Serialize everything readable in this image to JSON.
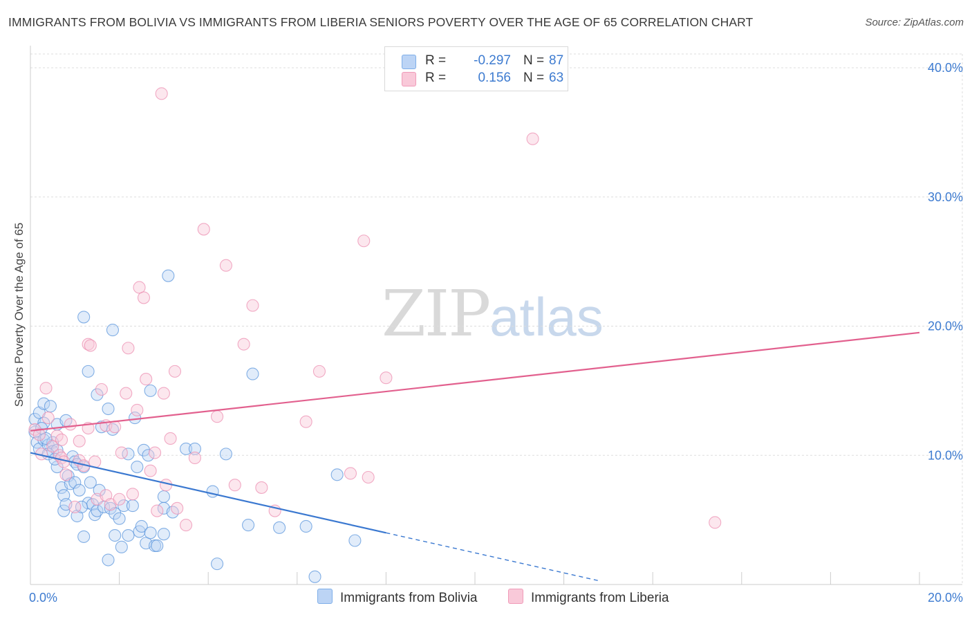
{
  "title": "IMMIGRANTS FROM BOLIVIA VS IMMIGRANTS FROM LIBERIA SENIORS POVERTY OVER THE AGE OF 65 CORRELATION CHART",
  "source": "Source: ZipAtlas.com",
  "watermark": {
    "zip": "ZIP",
    "atlas": "atlas"
  },
  "legend": [
    {
      "r_label": "R =",
      "r_value": "-0.297",
      "n_label": "N =",
      "n_value": "87",
      "color": "#7eaee8",
      "fill": "#bcd4f5"
    },
    {
      "r_label": "R =",
      "r_value": "0.156",
      "n_label": "N =",
      "n_value": "63",
      "color": "#f09ab8",
      "fill": "#f9c9d9"
    }
  ],
  "colors": {
    "bolivia": "#5b96dc",
    "liberia": "#ec8fb1",
    "bolivia_line": "#3a78d0",
    "liberia_line": "#e2608e",
    "axis_text": "#3d7bd0",
    "grid": "#dddddd"
  },
  "chart_data": {
    "type": "scatter",
    "title": "IMMIGRANTS FROM BOLIVIA VS IMMIGRANTS FROM LIBERIA SENIORS POVERTY OVER THE AGE OF 65 CORRELATION CHART",
    "xlabel": "",
    "ylabel": "Seniors Poverty Over the Age of 65",
    "xlim": [
      0,
      20
    ],
    "ylim": [
      0,
      40
    ],
    "x_tick_labels": [
      "0.0%",
      "20.0%"
    ],
    "y_ticks": [
      10,
      20,
      30,
      40
    ],
    "y_tick_labels": [
      "10.0%",
      "20.0%",
      "30.0%",
      "40.0%"
    ],
    "series": [
      {
        "name": "Immigrants from Bolivia",
        "r": -0.297,
        "n": 87,
        "trend": {
          "x0": 0,
          "y0": 10.2,
          "x1": 8,
          "y1": 4.0,
          "dashed_to_x": 12.8
        },
        "points": [
          [
            0.1,
            12.8
          ],
          [
            0.2,
            13.3
          ],
          [
            0.3,
            12.5
          ],
          [
            0.1,
            11.8
          ],
          [
            0.15,
            11.0
          ],
          [
            0.2,
            10.5
          ],
          [
            0.3,
            11.2
          ],
          [
            0.4,
            10.8
          ],
          [
            0.5,
            11.0
          ],
          [
            0.5,
            10.3
          ],
          [
            0.6,
            10.4
          ],
          [
            0.3,
            14.0
          ],
          [
            0.45,
            13.8
          ],
          [
            0.6,
            12.4
          ],
          [
            0.6,
            9.1
          ],
          [
            0.7,
            7.5
          ],
          [
            0.75,
            6.9
          ],
          [
            0.75,
            5.7
          ],
          [
            0.8,
            6.2
          ],
          [
            0.8,
            12.7
          ],
          [
            0.85,
            8.4
          ],
          [
            0.9,
            7.8
          ],
          [
            0.95,
            9.9
          ],
          [
            1.0,
            9.5
          ],
          [
            1.0,
            7.9
          ],
          [
            1.05,
            5.3
          ],
          [
            1.05,
            9.3
          ],
          [
            1.1,
            7.3
          ],
          [
            1.2,
            9.1
          ],
          [
            1.2,
            3.7
          ],
          [
            1.2,
            20.7
          ],
          [
            1.3,
            16.5
          ],
          [
            1.3,
            6.3
          ],
          [
            1.35,
            7.9
          ],
          [
            1.4,
            6.2
          ],
          [
            1.45,
            5.4
          ],
          [
            1.5,
            14.7
          ],
          [
            1.5,
            5.7
          ],
          [
            1.55,
            7.3
          ],
          [
            1.6,
            12.2
          ],
          [
            1.65,
            6.0
          ],
          [
            1.75,
            13.6
          ],
          [
            1.75,
            1.9
          ],
          [
            1.8,
            5.9
          ],
          [
            1.85,
            12.0
          ],
          [
            1.85,
            19.7
          ],
          [
            1.9,
            5.5
          ],
          [
            1.9,
            3.8
          ],
          [
            2.0,
            5.1
          ],
          [
            2.1,
            6.1
          ],
          [
            2.05,
            2.9
          ],
          [
            2.2,
            10.1
          ],
          [
            2.2,
            3.8
          ],
          [
            2.35,
            12.9
          ],
          [
            2.4,
            9.1
          ],
          [
            2.45,
            4.1
          ],
          [
            2.5,
            4.5
          ],
          [
            2.55,
            10.4
          ],
          [
            2.6,
            3.2
          ],
          [
            2.65,
            10.0
          ],
          [
            2.7,
            4.0
          ],
          [
            2.7,
            15.0
          ],
          [
            2.8,
            3.0
          ],
          [
            2.85,
            3.0
          ],
          [
            3.0,
            3.9
          ],
          [
            3.0,
            6.8
          ],
          [
            3.0,
            5.9
          ],
          [
            3.1,
            23.9
          ],
          [
            3.2,
            5.6
          ],
          [
            3.5,
            10.5
          ],
          [
            3.7,
            10.5
          ],
          [
            4.1,
            7.2
          ],
          [
            4.2,
            1.6
          ],
          [
            4.4,
            10.1
          ],
          [
            4.9,
            4.6
          ],
          [
            5.0,
            16.3
          ],
          [
            5.6,
            4.4
          ],
          [
            6.2,
            4.5
          ],
          [
            6.4,
            0.6
          ],
          [
            6.9,
            8.5
          ],
          [
            7.3,
            3.4
          ],
          [
            0.25,
            12.1
          ],
          [
            0.35,
            11.3
          ],
          [
            0.4,
            10.1
          ],
          [
            0.55,
            9.7
          ],
          [
            1.15,
            6.0
          ],
          [
            2.3,
            6.1
          ]
        ]
      },
      {
        "name": "Immigrants from Liberia",
        "r": 0.156,
        "n": 63,
        "trend": {
          "x0": 0,
          "y0": 11.9,
          "x1": 20,
          "y1": 19.5
        },
        "points": [
          [
            0.1,
            12.0
          ],
          [
            0.2,
            11.6
          ],
          [
            0.25,
            10.1
          ],
          [
            0.35,
            15.2
          ],
          [
            0.4,
            12.9
          ],
          [
            0.5,
            10.7
          ],
          [
            0.6,
            11.5
          ],
          [
            0.65,
            10.0
          ],
          [
            0.7,
            11.2
          ],
          [
            0.7,
            9.8
          ],
          [
            0.75,
            9.5
          ],
          [
            0.8,
            8.5
          ],
          [
            0.9,
            12.4
          ],
          [
            1.0,
            6.0
          ],
          [
            1.1,
            9.6
          ],
          [
            1.1,
            11.1
          ],
          [
            1.2,
            9.2
          ],
          [
            1.3,
            12.1
          ],
          [
            1.3,
            18.6
          ],
          [
            1.35,
            18.5
          ],
          [
            1.45,
            9.5
          ],
          [
            1.5,
            6.6
          ],
          [
            1.6,
            15.1
          ],
          [
            1.7,
            12.3
          ],
          [
            1.7,
            6.9
          ],
          [
            1.8,
            6.2
          ],
          [
            1.9,
            12.2
          ],
          [
            2.0,
            6.6
          ],
          [
            2.05,
            10.2
          ],
          [
            2.15,
            14.8
          ],
          [
            2.2,
            18.3
          ],
          [
            2.3,
            7.0
          ],
          [
            2.4,
            13.5
          ],
          [
            2.45,
            23.0
          ],
          [
            2.55,
            22.2
          ],
          [
            2.6,
            15.9
          ],
          [
            2.7,
            8.8
          ],
          [
            2.8,
            10.2
          ],
          [
            2.85,
            5.7
          ],
          [
            2.95,
            38.0
          ],
          [
            3.0,
            14.8
          ],
          [
            3.05,
            7.7
          ],
          [
            3.15,
            11.3
          ],
          [
            3.25,
            16.5
          ],
          [
            3.3,
            5.9
          ],
          [
            3.5,
            4.6
          ],
          [
            3.7,
            9.8
          ],
          [
            3.9,
            27.5
          ],
          [
            4.2,
            13.0
          ],
          [
            4.4,
            24.7
          ],
          [
            4.6,
            7.7
          ],
          [
            4.8,
            18.6
          ],
          [
            5.0,
            21.6
          ],
          [
            5.2,
            7.5
          ],
          [
            5.5,
            5.7
          ],
          [
            6.2,
            12.6
          ],
          [
            6.5,
            16.5
          ],
          [
            7.2,
            8.6
          ],
          [
            7.5,
            26.6
          ],
          [
            7.6,
            8.3
          ],
          [
            8.0,
            16.0
          ],
          [
            11.3,
            34.5
          ],
          [
            15.4,
            4.8
          ]
        ]
      }
    ],
    "legend": [
      "Immigrants from Bolivia",
      "Immigrants from Liberia"
    ]
  },
  "bottom_legend": [
    {
      "label": "Immigrants from Bolivia",
      "fill": "#bcd4f5",
      "stroke": "#7eaee8"
    },
    {
      "label": "Immigrants from Liberia",
      "fill": "#f9c9d9",
      "stroke": "#f09ab8"
    }
  ]
}
